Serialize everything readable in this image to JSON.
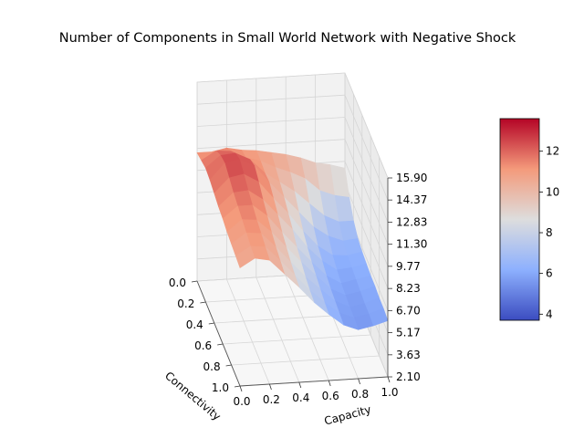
{
  "chart_data": {
    "type": "surface",
    "title": "Number of Components in Small World  Network with Negative Shock",
    "x_axis": {
      "label": "Connectivity",
      "ticks": [
        "0.0",
        "0.2",
        "0.4",
        "0.6",
        "0.8",
        "1.0"
      ],
      "range": [
        0.0,
        1.0
      ]
    },
    "y_axis": {
      "label": "Capacity",
      "ticks": [
        "0.0",
        "0.2",
        "0.4",
        "0.6",
        "0.8",
        "1.0"
      ],
      "range": [
        0.0,
        1.0
      ]
    },
    "z_axis": {
      "label": "",
      "ticks": [
        "2.10",
        "3.63",
        "5.17",
        "6.70",
        "8.23",
        "9.77",
        "11.30",
        "12.83",
        "14.37",
        "15.90"
      ],
      "range": [
        2.1,
        15.9
      ]
    },
    "colorbar": {
      "colormap": "coolwarm",
      "ticks": [
        "4",
        "6",
        "8",
        "10",
        "12"
      ],
      "range": [
        3.7,
        13.6
      ]
    },
    "surface_grid": {
      "connectivity": [
        0.0,
        0.1,
        0.2,
        0.3,
        0.4,
        0.5,
        0.6,
        0.7,
        0.8,
        0.9,
        1.0
      ],
      "capacity": [
        0.0,
        0.1,
        0.2,
        0.3,
        0.4,
        0.5,
        0.6,
        0.7,
        0.8,
        0.9,
        1.0
      ],
      "components": [
        [
          11.0,
          11.0,
          11.2,
          11.0,
          10.9,
          10.7,
          10.5,
          10.2,
          9.8,
          9.6,
          9.3
        ],
        [
          11.2,
          11.8,
          11.7,
          11.2,
          10.9,
          10.4,
          10.0,
          9.5,
          8.6,
          8.2,
          8.0
        ],
        [
          11.4,
          12.2,
          12.3,
          11.8,
          10.8,
          10.1,
          9.4,
          8.5,
          7.6,
          7.1,
          7.1
        ],
        [
          11.3,
          12.4,
          12.6,
          12.1,
          10.9,
          9.8,
          8.7,
          7.6,
          6.9,
          6.5,
          6.6
        ],
        [
          11.1,
          12.1,
          12.3,
          11.7,
          10.5,
          9.4,
          8.1,
          7.0,
          6.3,
          6.2,
          6.4
        ],
        [
          10.9,
          11.8,
          11.9,
          11.2,
          10.1,
          9.0,
          7.7,
          6.7,
          6.0,
          6.1,
          6.3
        ],
        [
          10.8,
          11.6,
          11.6,
          10.8,
          9.6,
          8.5,
          7.4,
          6.4,
          5.8,
          6.0,
          6.2
        ],
        [
          10.6,
          11.4,
          11.3,
          10.4,
          9.3,
          8.2,
          7.2,
          6.2,
          5.7,
          5.9,
          6.2
        ],
        [
          10.5,
          11.2,
          11.1,
          10.1,
          9.0,
          7.9,
          7.0,
          6.1,
          5.6,
          5.8,
          6.1
        ],
        [
          10.4,
          11.0,
          10.9,
          9.9,
          8.8,
          7.7,
          6.8,
          6.0,
          5.6,
          5.8,
          6.1
        ],
        [
          10.3,
          10.9,
          10.7,
          9.7,
          8.7,
          7.6,
          6.7,
          5.9,
          5.5,
          5.7,
          6.0
        ]
      ]
    },
    "grid": true
  }
}
